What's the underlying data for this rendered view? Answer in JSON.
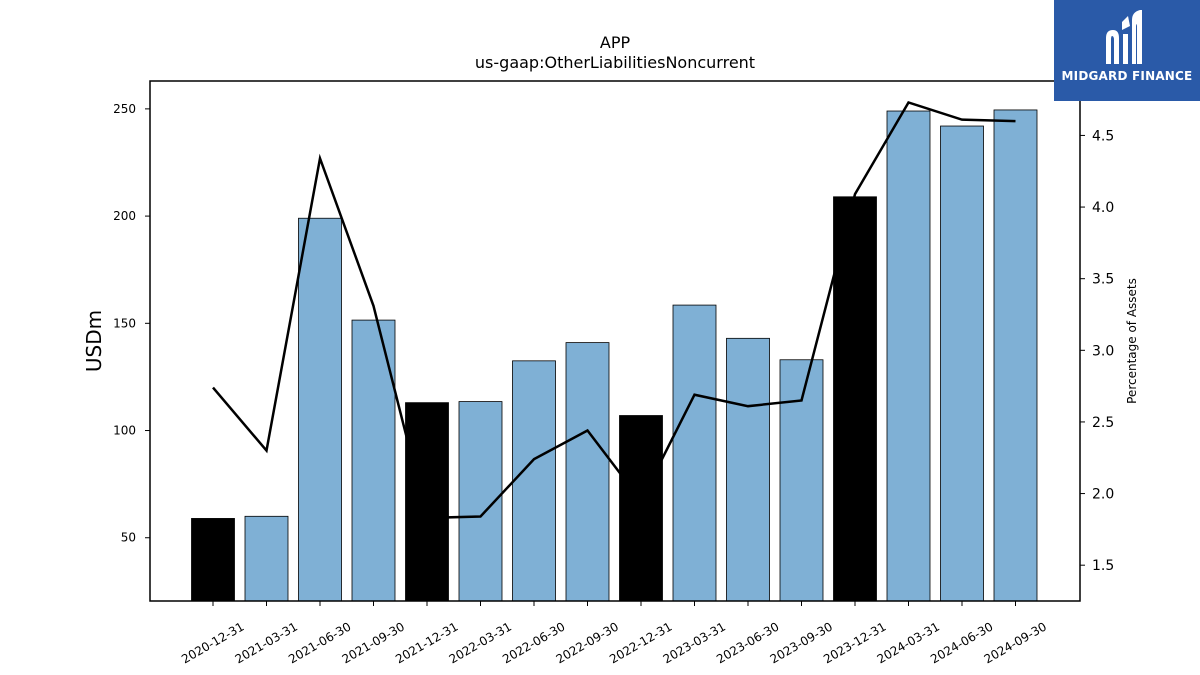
{
  "chart_data": {
    "type": "bar",
    "title": "APP",
    "subtitle": "us-gaap:OtherLiabilitiesNoncurrent",
    "ylabel": "USDm",
    "y2label": "Percentage of Assets",
    "ylim": [
      20.5,
      263
    ],
    "y2lim": [
      1.25,
      4.88
    ],
    "yticks": [
      50,
      100,
      150,
      200,
      250
    ],
    "y2ticks": [
      "1.5",
      "2.0",
      "2.5",
      "3.0",
      "3.5",
      "4.0",
      "4.5"
    ],
    "categories": [
      "2020-12-31",
      "2021-03-31",
      "2021-06-30",
      "2021-09-30",
      "2021-12-31",
      "2022-03-31",
      "2022-06-30",
      "2022-09-30",
      "2022-12-31",
      "2023-03-31",
      "2023-06-30",
      "2023-09-30",
      "2023-12-31",
      "2024-03-31",
      "2024-06-30",
      "2024-09-30"
    ],
    "series": [
      {
        "type": "bar",
        "values": [
          59,
          60,
          199,
          151.5,
          113,
          113.5,
          132.5,
          141,
          107,
          158.5,
          143,
          133,
          209,
          249,
          242,
          249.5
        ],
        "highlight": [
          true,
          false,
          false,
          false,
          true,
          false,
          false,
          false,
          true,
          false,
          false,
          false,
          true,
          false,
          false,
          false
        ],
        "color": "#7fb0d5",
        "highlight_color": "#000000"
      },
      {
        "type": "line",
        "axis": "right",
        "values": [
          2.74,
          2.3,
          4.34,
          3.31,
          1.83,
          1.84,
          2.24,
          2.44,
          1.95,
          2.69,
          2.61,
          2.65,
          4.09,
          4.73,
          4.61,
          4.6
        ],
        "color": "#000000"
      }
    ],
    "grid": false,
    "legend": "none"
  },
  "logo": {
    "text": "MIDGARD FINANCE",
    "background": "#2a5aa8"
  }
}
